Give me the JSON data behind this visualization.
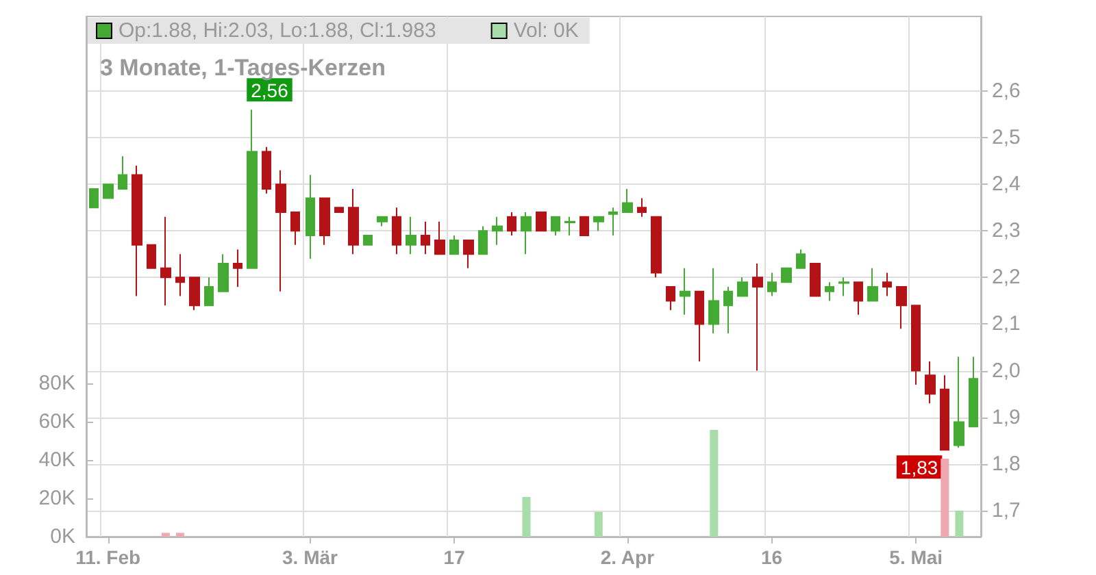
{
  "chart_data": {
    "type": "candlestick",
    "title": "3 Monate, 1-Tages-Kerzen",
    "categories": [
      null,
      "11. Feb",
      null,
      null,
      null,
      null,
      null,
      null,
      null,
      null,
      null,
      null,
      null,
      null,
      null,
      "3. Mär",
      null,
      null,
      null,
      null,
      null,
      null,
      null,
      null,
      null,
      "17",
      null,
      null,
      null,
      null,
      null,
      null,
      null,
      null,
      null,
      null,
      null,
      "2. Apr",
      null,
      null,
      null,
      null,
      null,
      null,
      null,
      null,
      null,
      "16",
      null,
      null,
      null,
      null,
      null,
      null,
      null,
      null,
      null,
      "5. Mai",
      null,
      null,
      null,
      null
    ],
    "series": [
      {
        "name": "Op:1.88, Hi:2.03, Lo:1.88, Cl:1.983",
        "color": "#44aa33",
        "ohlc": [
          [
            2.35,
            2.39,
            2.35,
            2.39
          ],
          [
            2.37,
            2.4,
            2.37,
            2.4
          ],
          [
            2.39,
            2.46,
            2.39,
            2.42
          ],
          [
            2.42,
            2.44,
            2.16,
            2.27
          ],
          [
            2.27,
            2.27,
            2.22,
            2.22
          ],
          [
            2.22,
            2.33,
            2.14,
            2.2
          ],
          [
            2.2,
            2.25,
            2.16,
            2.19
          ],
          [
            2.2,
            2.2,
            2.13,
            2.14
          ],
          [
            2.14,
            2.2,
            2.14,
            2.18
          ],
          [
            2.17,
            2.25,
            2.17,
            2.23
          ],
          [
            2.23,
            2.26,
            2.18,
            2.22
          ],
          [
            2.22,
            2.56,
            2.22,
            2.47
          ],
          [
            2.47,
            2.48,
            2.38,
            2.39
          ],
          [
            2.4,
            2.43,
            2.17,
            2.34
          ],
          [
            2.34,
            2.34,
            2.27,
            2.3
          ],
          [
            2.29,
            2.42,
            2.24,
            2.37
          ],
          [
            2.37,
            2.37,
            2.27,
            2.29
          ],
          [
            2.35,
            2.35,
            2.34,
            2.34
          ],
          [
            2.35,
            2.39,
            2.25,
            2.27
          ],
          [
            2.27,
            2.29,
            2.27,
            2.29
          ],
          [
            2.32,
            2.33,
            2.31,
            2.33
          ],
          [
            2.33,
            2.35,
            2.25,
            2.27
          ],
          [
            2.27,
            2.33,
            2.25,
            2.29
          ],
          [
            2.29,
            2.32,
            2.25,
            2.27
          ],
          [
            2.28,
            2.32,
            2.25,
            2.25
          ],
          [
            2.25,
            2.29,
            2.25,
            2.28
          ],
          [
            2.28,
            2.28,
            2.22,
            2.25
          ],
          [
            2.25,
            2.31,
            2.25,
            2.3
          ],
          [
            2.3,
            2.33,
            2.27,
            2.31
          ],
          [
            2.33,
            2.34,
            2.29,
            2.3
          ],
          [
            2.3,
            2.34,
            2.25,
            2.33
          ],
          [
            2.34,
            2.34,
            2.3,
            2.3
          ],
          [
            2.3,
            2.33,
            2.29,
            2.33
          ],
          [
            2.318,
            2.33,
            2.29,
            2.32
          ],
          [
            2.33,
            2.33,
            2.29,
            2.29
          ],
          [
            2.32,
            2.33,
            2.3,
            2.33
          ],
          [
            2.336,
            2.35,
            2.29,
            2.34
          ],
          [
            2.34,
            2.39,
            2.34,
            2.36
          ],
          [
            2.35,
            2.37,
            2.33,
            2.34
          ],
          [
            2.33,
            2.33,
            2.2,
            2.21
          ],
          [
            2.18,
            2.18,
            2.13,
            2.15
          ],
          [
            2.16,
            2.22,
            2.12,
            2.17
          ],
          [
            2.17,
            2.17,
            2.02,
            2.1
          ],
          [
            2.1,
            2.22,
            2.08,
            2.15
          ],
          [
            2.14,
            2.18,
            2.08,
            2.17
          ],
          [
            2.16,
            2.2,
            2.16,
            2.19
          ],
          [
            2.2,
            2.23,
            2.0,
            2.18
          ],
          [
            2.17,
            2.21,
            2.16,
            2.19
          ],
          [
            2.19,
            2.22,
            2.19,
            2.22
          ],
          [
            2.22,
            2.26,
            2.22,
            2.25
          ],
          [
            2.23,
            2.23,
            2.16,
            2.16
          ],
          [
            2.17,
            2.19,
            2.15,
            2.18
          ],
          [
            2.188,
            2.2,
            2.16,
            2.19
          ],
          [
            2.19,
            2.19,
            2.12,
            2.15
          ],
          [
            2.15,
            2.22,
            2.15,
            2.18
          ],
          [
            2.19,
            2.21,
            2.16,
            2.18
          ],
          [
            2.18,
            2.18,
            2.09,
            2.14
          ],
          [
            2.14,
            2.14,
            1.97,
            2.0
          ],
          [
            1.99,
            2.02,
            1.93,
            1.95
          ],
          [
            1.96,
            1.99,
            1.83,
            1.83
          ],
          [
            1.84,
            2.03,
            1.835,
            1.89
          ],
          [
            1.88,
            2.03,
            1.88,
            1.983
          ]
        ],
        "colors": [
          "#44aa33",
          "#44aa33",
          "#44aa33",
          "#b31217",
          "#b31217",
          "#b31217",
          "#b31217",
          "#b31217",
          "#44aa33",
          "#44aa33",
          "#b31217",
          "#44aa33",
          "#b31217",
          "#b31217",
          "#b31217",
          "#44aa33",
          "#b31217",
          "#b31217",
          "#b31217",
          "#44aa33",
          "#44aa33",
          "#b31217",
          "#44aa33",
          "#b31217",
          "#b31217",
          "#44aa33",
          "#b31217",
          "#44aa33",
          "#44aa33",
          "#b31217",
          "#44aa33",
          "#b31217",
          "#44aa33",
          "#44aa33",
          "#b31217",
          "#44aa33",
          "#44aa33",
          "#44aa33",
          "#b31217",
          "#b31217",
          "#b31217",
          "#44aa33",
          "#b31217",
          "#44aa33",
          "#44aa33",
          "#44aa33",
          "#b31217",
          "#44aa33",
          "#44aa33",
          "#44aa33",
          "#b31217",
          "#44aa33",
          "#44aa33",
          "#b31217",
          "#44aa33",
          "#b31217",
          "#b31217",
          "#b31217",
          "#b31217",
          "#b31217",
          "#44aa33",
          "#44aa33"
        ]
      },
      {
        "name": "Vol: 0K",
        "type": "bar",
        "axis": "y2",
        "color": "#a8dca8",
        "values": [
          null,
          null,
          null,
          null,
          null,
          2000,
          2000,
          null,
          null,
          null,
          null,
          null,
          null,
          null,
          null,
          null,
          null,
          null,
          null,
          null,
          null,
          null,
          null,
          null,
          null,
          null,
          null,
          null,
          null,
          null,
          20700,
          null,
          null,
          null,
          null,
          12900,
          null,
          null,
          null,
          null,
          null,
          null,
          null,
          55700,
          null,
          null,
          null,
          null,
          null,
          null,
          null,
          null,
          null,
          null,
          null,
          null,
          null,
          null,
          null,
          40700,
          13600,
          null
        ],
        "colors": [
          null,
          null,
          null,
          null,
          null,
          "#f0a8b0",
          "#f0a8b0",
          null,
          null,
          null,
          null,
          null,
          null,
          null,
          null,
          null,
          null,
          null,
          null,
          null,
          null,
          null,
          null,
          null,
          null,
          null,
          null,
          null,
          null,
          null,
          "#a8dca8",
          null,
          null,
          null,
          null,
          "#a8dca8",
          null,
          null,
          null,
          null,
          null,
          null,
          null,
          "#a8dca8",
          null,
          null,
          null,
          null,
          null,
          null,
          null,
          null,
          null,
          null,
          null,
          null,
          null,
          null,
          null,
          "#f0a8b0",
          "#a8dca8",
          null
        ]
      }
    ],
    "ylim": [
      1.644,
      2.76
    ],
    "yticks": [
      {
        "value": 1.7,
        "label": "1,7"
      },
      {
        "value": 1.8,
        "label": "1,8"
      },
      {
        "value": 1.9,
        "label": "1,9"
      },
      {
        "value": 2.0,
        "label": "2,0"
      },
      {
        "value": 2.1,
        "label": "2,1"
      },
      {
        "value": 2.2,
        "label": "2,2"
      },
      {
        "value": 2.3,
        "label": "2,3"
      },
      {
        "value": 2.4,
        "label": "2,4"
      },
      {
        "value": 2.5,
        "label": "2,5"
      },
      {
        "value": 2.6,
        "label": "2,6"
      }
    ],
    "y2lim": [
      0,
      271400
    ],
    "y2ticks": [
      {
        "value": 0,
        "label": "0K"
      },
      {
        "value": 20000,
        "label": "20K"
      },
      {
        "value": 40000,
        "label": "40K"
      },
      {
        "value": 60000,
        "label": "60K"
      },
      {
        "value": 80000,
        "label": "80K"
      }
    ],
    "annotations": [
      "2,56",
      "1,83"
    ],
    "grid": true,
    "legend": "top left"
  }
}
